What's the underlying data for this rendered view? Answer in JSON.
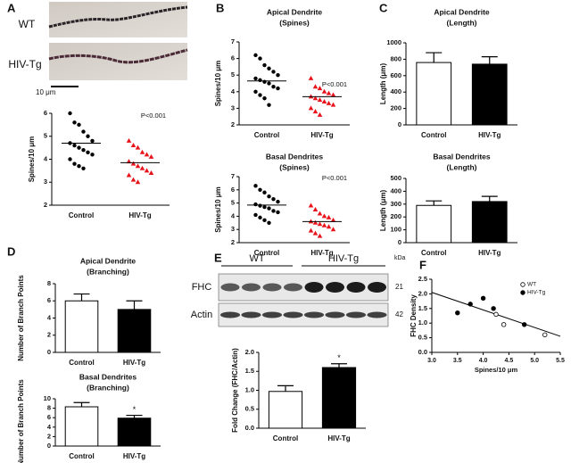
{
  "chart_data": [
    {
      "type": "strip",
      "panel": "A",
      "image_labels": [
        "WT",
        "HIV-Tg"
      ],
      "scale_label": "10 μm",
      "ylabel": "Spines/10 μm",
      "categories": [
        "Control",
        "HIV-Tg"
      ],
      "values": [
        [
          6.0,
          5.6,
          5.5,
          5.2,
          5.0,
          4.8,
          4.7,
          4.6,
          4.5,
          4.4,
          4.3,
          4.2,
          4.0,
          3.8,
          3.7,
          3.6
        ],
        [
          4.8,
          4.6,
          4.5,
          4.3,
          4.2,
          4.1,
          3.9,
          3.8,
          3.7,
          3.6,
          3.5,
          3.4,
          3.3,
          3.1,
          3.0
        ]
      ],
      "means": [
        4.7,
        3.85
      ],
      "colors": [
        "#000000",
        "#e8141c"
      ],
      "markers": [
        "circle",
        "triangle"
      ],
      "annotation": "P<0.001",
      "ylim": [
        2,
        6
      ],
      "yticks": [
        2,
        3,
        4,
        5,
        6
      ]
    },
    {
      "type": "strip",
      "panel": "B",
      "title": "Apical Dendrite",
      "subtitle": "(Spines)",
      "ylabel": "Spines/10 μm",
      "categories": [
        "Control",
        "HIV-Tg"
      ],
      "values": [
        [
          6.2,
          6.0,
          5.6,
          5.4,
          5.2,
          5.0,
          4.8,
          4.7,
          4.6,
          4.5,
          4.3,
          4.2,
          4.0,
          3.8,
          3.6,
          3.2
        ],
        [
          4.8,
          4.3,
          4.2,
          4.0,
          3.9,
          3.8,
          3.7,
          3.6,
          3.5,
          3.4,
          3.3,
          3.2,
          3.0,
          2.8,
          2.6
        ]
      ],
      "means": [
        4.65,
        3.7
      ],
      "colors": [
        "#000000",
        "#e8141c"
      ],
      "markers": [
        "circle",
        "triangle"
      ],
      "annotation": "P<0.001",
      "ylim": [
        2,
        7
      ],
      "yticks": [
        2,
        3,
        4,
        5,
        6,
        7
      ]
    },
    {
      "type": "strip",
      "title": "Basal Dendrites",
      "subtitle": "(Spines)",
      "ylabel": "Spines/10 μm",
      "categories": [
        "Control",
        "HIV-Tg"
      ],
      "values": [
        [
          6.3,
          6.0,
          5.8,
          5.5,
          5.3,
          5.1,
          4.9,
          4.8,
          4.7,
          4.6,
          4.4,
          4.3,
          4.1,
          3.9,
          3.7,
          3.5
        ],
        [
          4.8,
          4.5,
          4.2,
          4.0,
          3.9,
          3.7,
          3.6,
          3.5,
          3.4,
          3.3,
          3.2,
          3.0,
          2.9,
          2.7,
          2.5
        ]
      ],
      "means": [
        4.85,
        3.6
      ],
      "colors": [
        "#000000",
        "#e8141c"
      ],
      "markers": [
        "circle",
        "triangle"
      ],
      "annotation": "P<0.001",
      "ylim": [
        2,
        7
      ],
      "yticks": [
        2,
        3,
        4,
        5,
        6,
        7
      ]
    },
    {
      "type": "bar",
      "panel": "C",
      "title": "Apical Dendrite",
      "subtitle": "(Length)",
      "ylabel": "Length (μm)",
      "categories": [
        "Control",
        "HIV-Tg"
      ],
      "values": [
        760,
        740
      ],
      "errors": [
        120,
        90
      ],
      "colors": [
        "#ffffff",
        "#000000"
      ],
      "ylim": [
        0,
        1000
      ],
      "yticks": [
        0,
        200,
        400,
        600,
        800,
        1000
      ]
    },
    {
      "type": "bar",
      "title": "Basal Dendrites",
      "subtitle": "(Length)",
      "ylabel": "Length (μm)",
      "categories": [
        "Control",
        "HIV-Tg"
      ],
      "values": [
        290,
        320
      ],
      "errors": [
        35,
        40
      ],
      "colors": [
        "#ffffff",
        "#000000"
      ],
      "ylim": [
        0,
        500
      ],
      "yticks": [
        0,
        100,
        200,
        300,
        400,
        500
      ]
    },
    {
      "type": "bar",
      "panel": "D",
      "title": "Apical Dendrite",
      "subtitle": "(Branching)",
      "ylabel": "Number of Branch Points",
      "categories": [
        "Control",
        "HIV-Tg"
      ],
      "values": [
        6.0,
        5.0
      ],
      "errors": [
        0.8,
        1.0
      ],
      "colors": [
        "#ffffff",
        "#000000"
      ],
      "ylim": [
        0,
        8
      ],
      "yticks": [
        0,
        2,
        4,
        6,
        8
      ]
    },
    {
      "type": "bar",
      "title": "Basal Dendrites",
      "subtitle": "(Branching)",
      "ylabel": "Number of Branch Points",
      "categories": [
        "Control",
        "HIV-Tg"
      ],
      "values": [
        8.3,
        5.9
      ],
      "errors": [
        0.9,
        0.6
      ],
      "colors": [
        "#ffffff",
        "#000000"
      ],
      "annotation": "*",
      "annotation_category": "HIV-Tg",
      "ylim": [
        0,
        10
      ],
      "yticks": [
        0,
        2,
        4,
        6,
        8,
        10
      ]
    },
    {
      "type": "bar",
      "panel": "E",
      "blot": {
        "groups": [
          "WT",
          "HIV-Tg"
        ],
        "rows": [
          "FHC",
          "Actin"
        ],
        "unit": "kDa",
        "sizes": [
          21,
          42
        ]
      },
      "ylabel": "Fold Change (FHC/Actin)",
      "categories": [
        "Control",
        "HIV-Tg"
      ],
      "values": [
        0.97,
        1.6
      ],
      "errors": [
        0.15,
        0.1
      ],
      "colors": [
        "#ffffff",
        "#000000"
      ],
      "annotation": "*",
      "annotation_category": "HIV-Tg",
      "ylim": [
        0,
        2
      ],
      "yticks": [
        {
          "value": 0,
          "label": "0.0"
        },
        {
          "value": 0.5,
          "label": "0.5"
        },
        {
          "value": 1,
          "label": "1.0"
        },
        {
          "value": 1.5,
          "label": "1.5"
        },
        {
          "value": 2,
          "label": "2.0"
        }
      ]
    },
    {
      "type": "scatter",
      "panel": "F",
      "xlabel": "Spines/10 μm",
      "ylabel": "FHC Density",
      "series": [
        {
          "name": "WT",
          "marker": "open",
          "x": [
            4.25,
            4.4,
            5.2
          ],
          "y": [
            1.3,
            0.95,
            0.6
          ]
        },
        {
          "name": "HIV-Tg",
          "marker": "filled",
          "x": [
            3.5,
            3.75,
            4.0,
            4.2,
            4.8
          ],
          "y": [
            1.35,
            1.65,
            1.85,
            1.5,
            0.95
          ]
        }
      ],
      "fit": {
        "x": [
          3,
          5.5
        ],
        "y": [
          2.05,
          0.55
        ]
      },
      "legend": "top-right",
      "xlim": [
        3,
        5.5
      ],
      "xticks": [
        {
          "value": 3,
          "label": "3.0"
        },
        {
          "value": 3.5,
          "label": "3.5"
        },
        {
          "value": 4,
          "label": "4.0"
        },
        {
          "value": 4.5,
          "label": "4.5"
        },
        {
          "value": 5,
          "label": "5.0"
        },
        {
          "value": 5.5,
          "label": "5.5"
        }
      ],
      "ylim": [
        0,
        2.5
      ],
      "yticks": [
        {
          "value": 0,
          "label": "0.0"
        },
        {
          "value": 0.5,
          "label": "0.5"
        },
        {
          "value": 1,
          "label": "1.0"
        },
        {
          "value": 1.5,
          "label": "1.5"
        },
        {
          "value": 2,
          "label": "2.0"
        },
        {
          "value": 2.5,
          "label": "2.5"
        }
      ]
    }
  ]
}
